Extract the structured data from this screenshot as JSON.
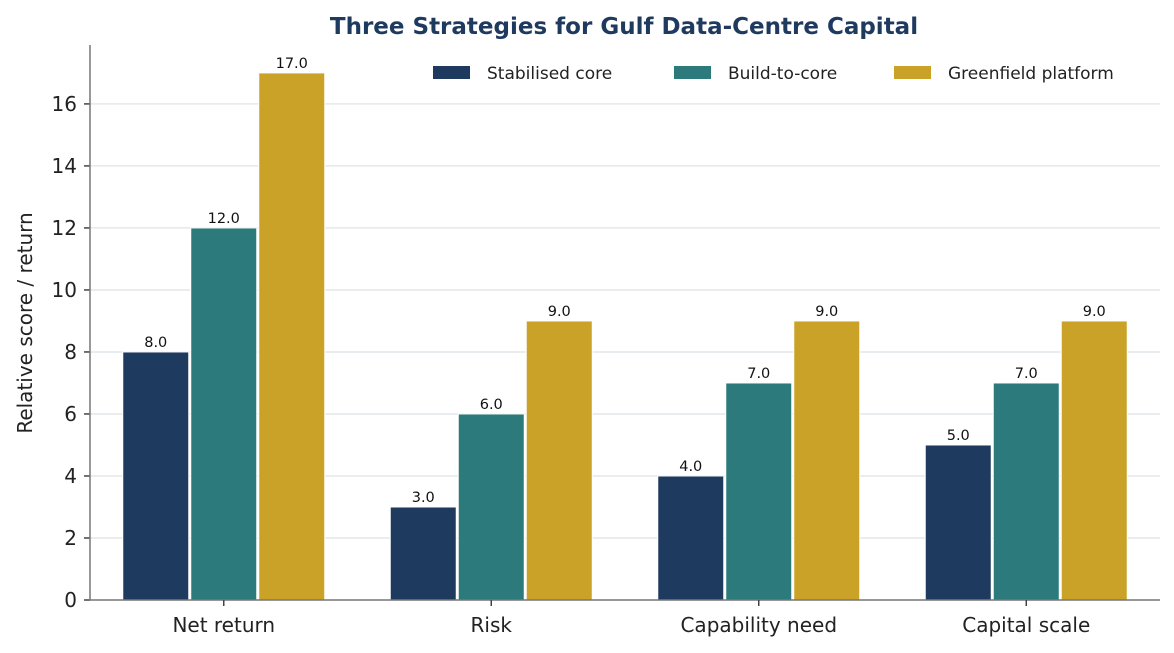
{
  "chart_data": {
    "type": "bar",
    "title": "Three Strategies for Gulf Data-Centre Capital",
    "xlabel": "",
    "ylabel": "Relative score / return",
    "categories": [
      "Net return",
      "Risk",
      "Capability need",
      "Capital scale"
    ],
    "series": [
      {
        "name": "Stabilised core",
        "values": [
          8.0,
          3.0,
          4.0,
          5.0
        ],
        "color": "#1f3a5f"
      },
      {
        "name": "Build-to-core",
        "values": [
          12.0,
          6.0,
          7.0,
          7.0
        ],
        "color": "#2c7a7b"
      },
      {
        "name": "Greenfield platform",
        "values": [
          17.0,
          9.0,
          9.0,
          9.0
        ],
        "color": "#c9a227"
      }
    ],
    "ylim": [
      0,
      17.9
    ],
    "yticks": [
      0,
      2,
      4,
      6,
      8,
      10,
      12,
      14,
      16
    ],
    "grid": "horizontal",
    "legend_position": "top-right",
    "data_labels": true,
    "data_label_decimals": 1
  }
}
